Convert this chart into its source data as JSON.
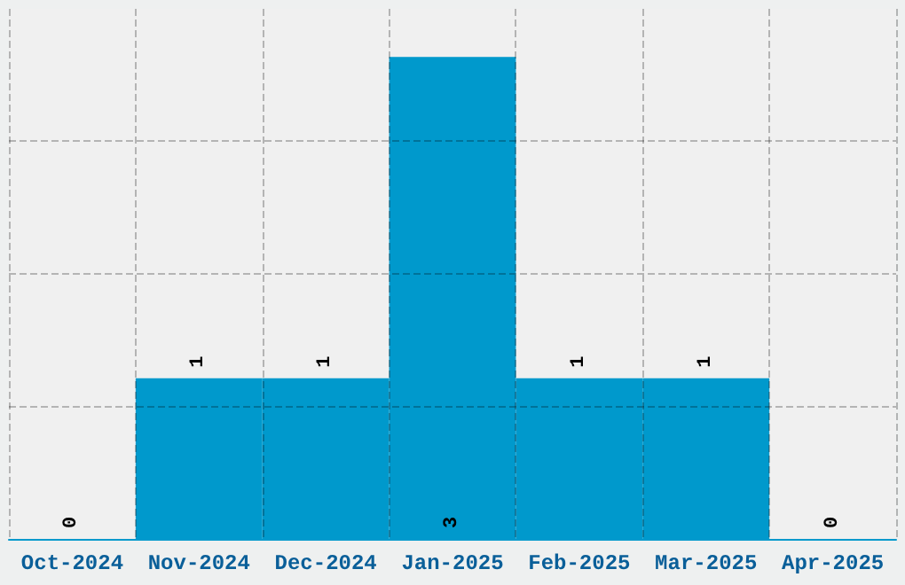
{
  "chart_data": {
    "type": "bar",
    "categories": [
      "Oct-2024",
      "Nov-2024",
      "Dec-2024",
      "Jan-2025",
      "Feb-2025",
      "Mar-2025",
      "Apr-2025"
    ],
    "values": [
      0,
      1,
      1,
      3,
      1,
      1,
      0
    ],
    "color": "#0099cc",
    "ylim": [
      0,
      3.3
    ],
    "yticks": [
      {
        "value": 0.825,
        "label": null
      },
      {
        "value": 1.65,
        "label": null
      },
      {
        "value": 2.475,
        "label": null
      }
    ],
    "tick_labels": "x",
    "grid": true,
    "data_labels": true
  }
}
